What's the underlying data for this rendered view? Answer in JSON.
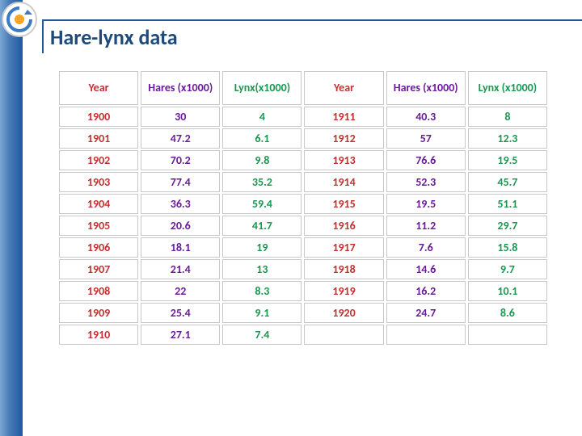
{
  "title": "Hare-lynx data",
  "table": {
    "type": "table",
    "columns": [
      {
        "key": "year1",
        "label": "Year",
        "colorClass": "c-year"
      },
      {
        "key": "hares1",
        "label": "Hares (x1000)",
        "colorClass": "c-hares"
      },
      {
        "key": "lynx1",
        "label": "Lynx(x1000)",
        "colorClass": "c-lynx"
      },
      {
        "key": "year2",
        "label": "Year",
        "colorClass": "c-year"
      },
      {
        "key": "hares2",
        "label": "Hares (x1000)",
        "colorClass": "c-hares"
      },
      {
        "key": "lynx2",
        "label": "Lynx (x1000)",
        "colorClass": "c-lynx"
      }
    ],
    "rows": [
      {
        "year1": "1900",
        "hares1": "30",
        "lynx1": "4",
        "year2": "1911",
        "hares2": "40.3",
        "lynx2": "8"
      },
      {
        "year1": "1901",
        "hares1": "47.2",
        "lynx1": "6.1",
        "year2": "1912",
        "hares2": "57",
        "lynx2": "12.3"
      },
      {
        "year1": "1902",
        "hares1": "70.2",
        "lynx1": "9.8",
        "year2": "1913",
        "hares2": "76.6",
        "lynx2": "19.5"
      },
      {
        "year1": "1903",
        "hares1": "77.4",
        "lynx1": "35.2",
        "year2": "1914",
        "hares2": "52.3",
        "lynx2": "45.7"
      },
      {
        "year1": "1904",
        "hares1": "36.3",
        "lynx1": "59.4",
        "year2": "1915",
        "hares2": "19.5",
        "lynx2": "51.1"
      },
      {
        "year1": "1905",
        "hares1": "20.6",
        "lynx1": "41.7",
        "year2": "1916",
        "hares2": "11.2",
        "lynx2": "29.7"
      },
      {
        "year1": "1906",
        "hares1": "18.1",
        "lynx1": "19",
        "year2": "1917",
        "hares2": "7.6",
        "lynx2": "15.8"
      },
      {
        "year1": "1907",
        "hares1": "21.4",
        "lynx1": "13",
        "year2": "1918",
        "hares2": "14.6",
        "lynx2": "9.7"
      },
      {
        "year1": "1908",
        "hares1": "22",
        "lynx1": "8.3",
        "year2": "1919",
        "hares2": "16.2",
        "lynx2": "10.1"
      },
      {
        "year1": "1909",
        "hares1": "25.4",
        "lynx1": "9.1",
        "year2": "1920",
        "hares2": "24.7",
        "lynx2": "8.6"
      },
      {
        "year1": "1910",
        "hares1": "27.1",
        "lynx1": "7.4",
        "year2": "",
        "hares2": "",
        "lynx2": ""
      }
    ],
    "colors": {
      "year": "#c53030",
      "hares": "#6a1b9a",
      "lynx": "#1a9850",
      "border": "#c8c8c8",
      "background": "#ffffff"
    },
    "font_size_header": 14,
    "font_size_cell": 14,
    "font_weight": "bold"
  },
  "accent": {
    "rule_color": "#1e5aa0",
    "sidebar_gradient": [
      "#7aa8d4",
      "#1e5aa0"
    ]
  }
}
